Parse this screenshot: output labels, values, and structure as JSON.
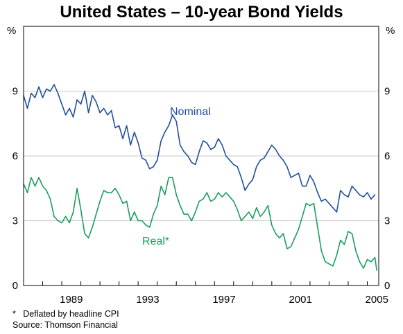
{
  "chart_data": {
    "type": "line",
    "title": "United States – 10-year Bond Yields",
    "y_unit_left": "%",
    "y_unit_right": "%",
    "ylim": [
      0,
      12
    ],
    "yticks": [
      0,
      3,
      6,
      9
    ],
    "xlim": [
      1987.0,
      2005.6
    ],
    "xticks": [
      1989,
      1993,
      1997,
      2001,
      2005
    ],
    "grid": "horizontal",
    "series": [
      {
        "name": "Nominal",
        "color": "#1f4e9c",
        "points": [
          [
            1987.0,
            8.8
          ],
          [
            1987.2,
            8.2
          ],
          [
            1987.4,
            8.9
          ],
          [
            1987.6,
            8.7
          ],
          [
            1987.8,
            9.2
          ],
          [
            1988.0,
            8.7
          ],
          [
            1988.2,
            9.1
          ],
          [
            1988.4,
            9.0
          ],
          [
            1988.6,
            9.3
          ],
          [
            1988.8,
            8.9
          ],
          [
            1989.0,
            8.4
          ],
          [
            1989.2,
            7.9
          ],
          [
            1989.4,
            8.2
          ],
          [
            1989.6,
            7.8
          ],
          [
            1989.8,
            8.6
          ],
          [
            1990.0,
            8.4
          ],
          [
            1990.2,
            9.0
          ],
          [
            1990.4,
            8.0
          ],
          [
            1990.6,
            8.8
          ],
          [
            1990.8,
            8.5
          ],
          [
            1991.0,
            8.0
          ],
          [
            1991.2,
            8.2
          ],
          [
            1991.4,
            7.9
          ],
          [
            1991.6,
            8.1
          ],
          [
            1991.8,
            7.3
          ],
          [
            1992.0,
            7.4
          ],
          [
            1992.2,
            6.8
          ],
          [
            1992.4,
            7.4
          ],
          [
            1992.6,
            6.5
          ],
          [
            1992.8,
            7.1
          ],
          [
            1993.0,
            6.6
          ],
          [
            1993.2,
            5.9
          ],
          [
            1993.4,
            5.8
          ],
          [
            1993.6,
            5.4
          ],
          [
            1993.8,
            5.5
          ],
          [
            1994.0,
            5.8
          ],
          [
            1994.2,
            6.7
          ],
          [
            1994.4,
            7.1
          ],
          [
            1994.6,
            7.4
          ],
          [
            1994.8,
            7.9
          ],
          [
            1995.0,
            7.6
          ],
          [
            1995.2,
            6.5
          ],
          [
            1995.4,
            6.2
          ],
          [
            1995.6,
            6.0
          ],
          [
            1995.8,
            5.7
          ],
          [
            1996.0,
            5.6
          ],
          [
            1996.2,
            6.2
          ],
          [
            1996.4,
            6.7
          ],
          [
            1996.6,
            6.6
          ],
          [
            1996.8,
            6.3
          ],
          [
            1997.0,
            6.4
          ],
          [
            1997.2,
            6.8
          ],
          [
            1997.4,
            6.5
          ],
          [
            1997.6,
            6.0
          ],
          [
            1997.8,
            5.8
          ],
          [
            1998.0,
            5.6
          ],
          [
            1998.2,
            5.5
          ],
          [
            1998.4,
            5.0
          ],
          [
            1998.6,
            4.4
          ],
          [
            1998.8,
            4.7
          ],
          [
            1999.0,
            4.9
          ],
          [
            1999.2,
            5.5
          ],
          [
            1999.4,
            5.8
          ],
          [
            1999.6,
            5.9
          ],
          [
            1999.8,
            6.2
          ],
          [
            2000.0,
            6.5
          ],
          [
            2000.2,
            6.3
          ],
          [
            2000.4,
            6.0
          ],
          [
            2000.6,
            5.8
          ],
          [
            2000.8,
            5.5
          ],
          [
            2001.0,
            5.0
          ],
          [
            2001.2,
            5.1
          ],
          [
            2001.4,
            5.2
          ],
          [
            2001.6,
            4.6
          ],
          [
            2001.8,
            4.6
          ],
          [
            2002.0,
            5.1
          ],
          [
            2002.2,
            4.8
          ],
          [
            2002.4,
            4.3
          ],
          [
            2002.6,
            3.9
          ],
          [
            2002.8,
            4.0
          ],
          [
            2003.0,
            3.8
          ],
          [
            2003.2,
            3.6
          ],
          [
            2003.4,
            3.4
          ],
          [
            2003.6,
            4.4
          ],
          [
            2003.8,
            4.2
          ],
          [
            2004.0,
            4.1
          ],
          [
            2004.2,
            4.6
          ],
          [
            2004.4,
            4.4
          ],
          [
            2004.6,
            4.2
          ],
          [
            2004.8,
            4.1
          ],
          [
            2005.0,
            4.3
          ],
          [
            2005.2,
            4.0
          ],
          [
            2005.4,
            4.2
          ]
        ]
      },
      {
        "name": "Real*",
        "color": "#1a9e5c",
        "points": [
          [
            1987.0,
            4.7
          ],
          [
            1987.2,
            4.3
          ],
          [
            1987.4,
            5.0
          ],
          [
            1987.6,
            4.6
          ],
          [
            1987.8,
            5.0
          ],
          [
            1988.0,
            4.6
          ],
          [
            1988.2,
            4.4
          ],
          [
            1988.4,
            4.0
          ],
          [
            1988.6,
            3.2
          ],
          [
            1988.8,
            3.0
          ],
          [
            1989.0,
            2.9
          ],
          [
            1989.2,
            3.2
          ],
          [
            1989.4,
            2.9
          ],
          [
            1989.6,
            3.4
          ],
          [
            1989.8,
            4.5
          ],
          [
            1990.0,
            3.5
          ],
          [
            1990.2,
            2.4
          ],
          [
            1990.4,
            2.2
          ],
          [
            1990.6,
            2.7
          ],
          [
            1990.8,
            3.3
          ],
          [
            1991.0,
            3.9
          ],
          [
            1991.2,
            4.4
          ],
          [
            1991.4,
            4.3
          ],
          [
            1991.6,
            4.3
          ],
          [
            1991.8,
            4.5
          ],
          [
            1992.0,
            4.2
          ],
          [
            1992.2,
            3.8
          ],
          [
            1992.4,
            3.9
          ],
          [
            1992.6,
            3.0
          ],
          [
            1992.8,
            3.4
          ],
          [
            1993.0,
            3.0
          ],
          [
            1993.2,
            3.0
          ],
          [
            1993.4,
            2.8
          ],
          [
            1993.6,
            2.7
          ],
          [
            1993.8,
            3.3
          ],
          [
            1994.0,
            3.7
          ],
          [
            1994.2,
            4.6
          ],
          [
            1994.4,
            4.2
          ],
          [
            1994.6,
            5.0
          ],
          [
            1994.8,
            5.0
          ],
          [
            1995.0,
            4.2
          ],
          [
            1995.2,
            3.7
          ],
          [
            1995.4,
            3.3
          ],
          [
            1995.6,
            3.3
          ],
          [
            1995.8,
            3.0
          ],
          [
            1996.0,
            3.4
          ],
          [
            1996.2,
            3.9
          ],
          [
            1996.4,
            4.0
          ],
          [
            1996.6,
            4.3
          ],
          [
            1996.8,
            3.9
          ],
          [
            1997.0,
            4.0
          ],
          [
            1997.2,
            4.3
          ],
          [
            1997.4,
            4.1
          ],
          [
            1997.6,
            4.3
          ],
          [
            1997.8,
            4.1
          ],
          [
            1998.0,
            3.9
          ],
          [
            1998.2,
            3.5
          ],
          [
            1998.4,
            3.0
          ],
          [
            1998.6,
            3.2
          ],
          [
            1998.8,
            3.4
          ],
          [
            1999.0,
            3.1
          ],
          [
            1999.2,
            3.6
          ],
          [
            1999.4,
            3.2
          ],
          [
            1999.6,
            3.4
          ],
          [
            1999.8,
            3.7
          ],
          [
            2000.0,
            2.8
          ],
          [
            2000.2,
            2.4
          ],
          [
            2000.4,
            2.2
          ],
          [
            2000.6,
            2.4
          ],
          [
            2000.8,
            1.7
          ],
          [
            2001.0,
            1.8
          ],
          [
            2001.2,
            2.2
          ],
          [
            2001.4,
            2.6
          ],
          [
            2001.6,
            3.2
          ],
          [
            2001.8,
            3.8
          ],
          [
            2002.0,
            3.7
          ],
          [
            2002.2,
            3.8
          ],
          [
            2002.4,
            2.7
          ],
          [
            2002.6,
            1.6
          ],
          [
            2002.8,
            1.1
          ],
          [
            2003.0,
            1.0
          ],
          [
            2003.2,
            0.9
          ],
          [
            2003.4,
            1.4
          ],
          [
            2003.6,
            2.1
          ],
          [
            2003.8,
            1.9
          ],
          [
            2004.0,
            2.5
          ],
          [
            2004.2,
            2.4
          ],
          [
            2004.4,
            1.6
          ],
          [
            2004.6,
            1.1
          ],
          [
            2004.8,
            0.8
          ],
          [
            2005.0,
            1.2
          ],
          [
            2005.2,
            1.1
          ],
          [
            2005.4,
            1.3
          ],
          [
            2005.5,
            0.7
          ]
        ]
      }
    ],
    "annotations": {
      "nominal_label": "Nominal",
      "real_label": "Real*"
    },
    "footnotes": [
      "*   Deflated by headline CPI",
      "Source: Thomson Financial"
    ]
  }
}
